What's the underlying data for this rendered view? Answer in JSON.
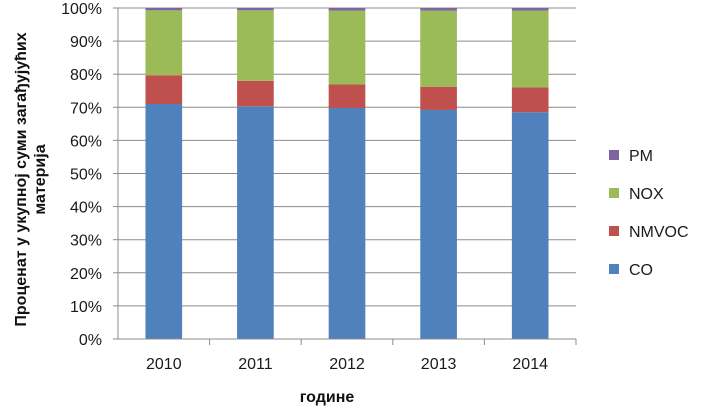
{
  "chart_data": {
    "type": "bar",
    "stacked": true,
    "percent_stacked": true,
    "categories": [
      "2010",
      "2011",
      "2012",
      "2013",
      "2014"
    ],
    "series": [
      {
        "name": "CO",
        "color": "#4F81BD",
        "values": [
          71.0,
          70.3,
          69.8,
          69.2,
          68.5
        ]
      },
      {
        "name": "NMVOC",
        "color": "#C0504D",
        "values": [
          8.7,
          7.7,
          7.1,
          7.0,
          7.5
        ]
      },
      {
        "name": "NOX",
        "color": "#9BBB59",
        "values": [
          19.6,
          21.3,
          22.3,
          23.0,
          23.2
        ]
      },
      {
        "name": "PM",
        "color": "#8064A2",
        "values": [
          0.7,
          0.7,
          0.8,
          0.8,
          0.8
        ]
      }
    ],
    "ylim": [
      0,
      100
    ],
    "yticks": [
      "0%",
      "10%",
      "20%",
      "30%",
      "40%",
      "50%",
      "60%",
      "70%",
      "80%",
      "90%",
      "100%"
    ],
    "xlabel": "године",
    "ylabel": "Проценат у укупној суми загађујућих материја",
    "grid": true,
    "legend_position": "right",
    "legend_order": [
      "PM",
      "NOX",
      "NMVOC",
      "CO"
    ]
  }
}
